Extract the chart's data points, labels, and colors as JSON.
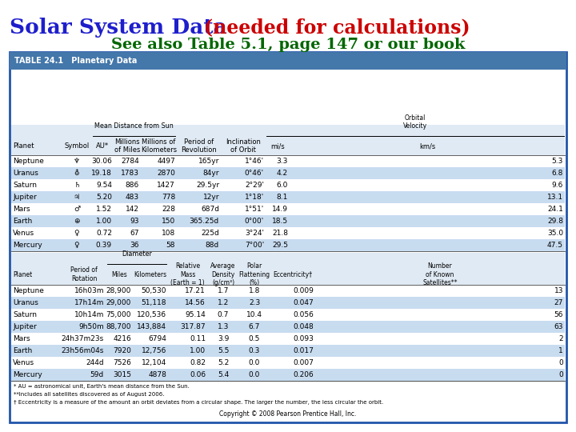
{
  "title1": "Solar System Data ",
  "title2": "(needed for calculations)",
  "subtitle": "See also Table 5.1, page 147 or our book",
  "title1_color": "#1E1ECC",
  "title2_color": "#CC0000",
  "subtitle_color": "#006600",
  "bg_color": "#FFFFFF",
  "border_color": "#2255AA",
  "header_bar_color": "#4477AA",
  "header_text_color": "#FFFFFF",
  "even_row_color": "#C8DCF0",
  "odd_row_color": "#FFFFFF",
  "table_label": "TABLE 24.1   Planetary Data",
  "top_planets": [
    "Mercury",
    "Venus",
    "Earth",
    "Mars",
    "Jupiter",
    "Saturn",
    "Uranus",
    "Neptune"
  ],
  "top_symbol": [
    "q",
    "q",
    "+",
    "d",
    "2",
    "b",
    "O",
    "y"
  ],
  "top_AU": [
    "0.39",
    "0.72",
    "1.00",
    "1.52",
    "5.20",
    "9.54",
    "19.18",
    "30.06"
  ],
  "top_miles": [
    "36",
    "67",
    "93",
    "142",
    "483",
    "886",
    "1783",
    "2784"
  ],
  "top_km": [
    "58",
    "108",
    "150",
    "228",
    "778",
    "1427",
    "2870",
    "4497"
  ],
  "top_rev": [
    "88d",
    "225d",
    "365.25d",
    "687d",
    "12yr",
    "29.5yr",
    "84yr",
    "165yr"
  ],
  "top_incl": [
    "7°00'",
    "3°24'",
    "0°00'",
    "1°51'",
    "1°18'",
    "2°29'",
    "0°46'",
    "1°46'"
  ],
  "top_mis": [
    "29.5",
    "21.8",
    "18.5",
    "14.9",
    "8.1",
    "6.0",
    "4.2",
    "3.3"
  ],
  "top_kms": [
    "47.5",
    "35.0",
    "29.8",
    "24.1",
    "13.1",
    "9.6",
    "6.8",
    "5.3"
  ],
  "bot_planets": [
    "Mercury",
    "Venus",
    "Earth",
    "Mars",
    "Jupiter",
    "Saturn",
    "Uranus",
    "Neptune"
  ],
  "bot_rot": [
    "59d",
    "244d",
    "23h56m04s",
    "24h37m23s",
    "9h50m",
    "10h14m",
    "17h14m",
    "16h03m"
  ],
  "bot_dmiles": [
    "3015",
    "7526",
    "7920",
    "4216",
    "88,700",
    "75,000",
    "29,000",
    "28,900"
  ],
  "bot_dkm": [
    "4878",
    "12,104",
    "12,756",
    "6794",
    "143,884",
    "120,536",
    "51,118",
    "50,530"
  ],
  "bot_mass": [
    "0.06",
    "0.82",
    "1.00",
    "0.11",
    "317.87",
    "95.14",
    "14.56",
    "17.21"
  ],
  "bot_dens": [
    "5.4",
    "5.2",
    "5.5",
    "3.9",
    "1.3",
    "0.7",
    "1.2",
    "1.7"
  ],
  "bot_flat": [
    "0.0",
    "0.0",
    "0.3",
    "0.5",
    "6.7",
    "10.4",
    "2.3",
    "1.8"
  ],
  "bot_ecc": [
    "0.206",
    "0.007",
    "0.017",
    "0.093",
    "0.048",
    "0.056",
    "0.047",
    "0.009"
  ],
  "bot_sat": [
    "0",
    "0",
    "1",
    "2",
    "63",
    "56",
    "27",
    "13"
  ],
  "fn1": "* AU = astronomical unit, Earth's mean distance from the Sun.",
  "fn2": "**Includes all satellites discovered as of August 2006.",
  "fn3": "† Eccentricity is a measure of the amount an orbit deviates from a circular shape. The larger the number, the less circular the orbit.",
  "copyright": "Copyright © 2008 Pearson Prentice Hall, Inc."
}
